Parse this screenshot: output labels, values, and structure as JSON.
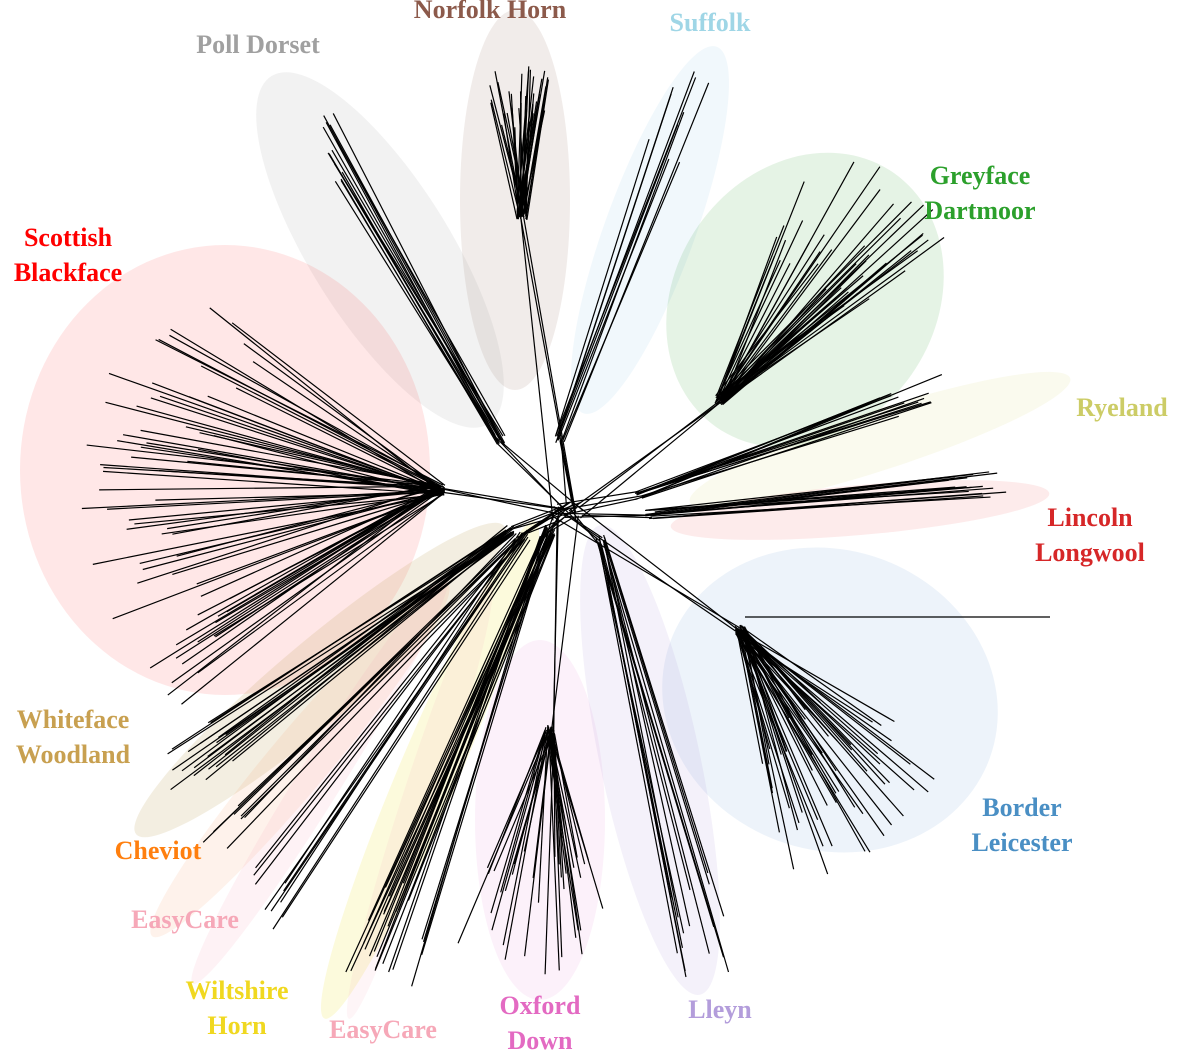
{
  "labels": [
    {
      "lines": [
        "Norfolk Horn"
      ]
    },
    {
      "lines": [
        "Suffolk"
      ]
    },
    {
      "lines": [
        "Poll Dorset"
      ]
    },
    {
      "lines": [
        "Greyface",
        "Dartmoor"
      ]
    },
    {
      "lines": [
        "Scottish",
        "Blackface"
      ]
    },
    {
      "lines": [
        "Ryeland"
      ]
    },
    {
      "lines": [
        "Lincoln",
        "Longwool"
      ]
    },
    {
      "lines": [
        "Whiteface",
        "Woodland"
      ]
    },
    {
      "lines": [
        "Border",
        "Leicester"
      ]
    },
    {
      "lines": [
        "Cheviot"
      ]
    },
    {
      "lines": [
        "EasyCare"
      ]
    },
    {
      "lines": [
        "Wiltshire",
        "Horn"
      ]
    },
    {
      "lines": [
        "EasyCare"
      ]
    },
    {
      "lines": [
        "Oxford",
        "Down"
      ]
    },
    {
      "lines": [
        "Lleyn"
      ]
    }
  ]
}
